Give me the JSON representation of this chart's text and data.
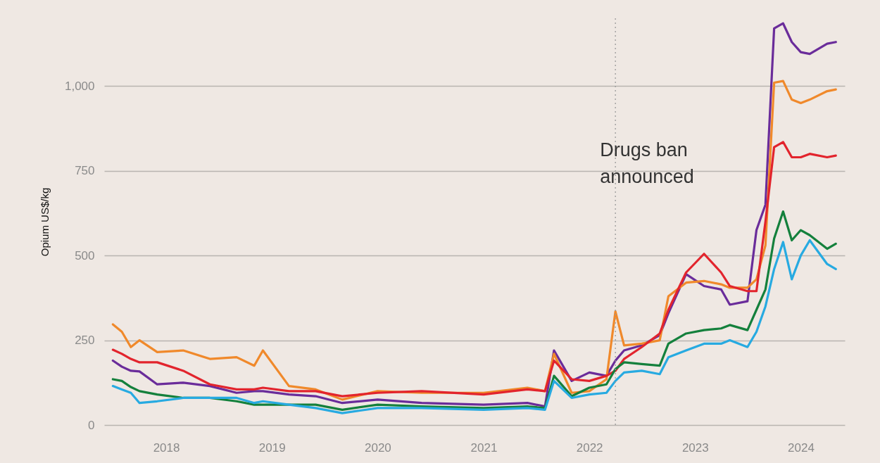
{
  "chart_data": {
    "type": "line",
    "ylabel": "Opium US$/kg",
    "x": [
      "2017-07",
      "2017-08",
      "2017-09",
      "2017-10",
      "2017-12",
      "2018-03",
      "2018-06",
      "2018-09",
      "2018-11",
      "2018-12",
      "2019-03",
      "2019-06",
      "2019-09",
      "2020-01",
      "2020-06",
      "2021-01",
      "2021-06",
      "2021-08",
      "2021-09",
      "2021-11",
      "2022-01",
      "2022-03",
      "2022-04",
      "2022-05",
      "2022-07",
      "2022-09",
      "2022-10",
      "2022-12",
      "2023-02",
      "2023-04",
      "2023-05",
      "2023-07",
      "2023-08",
      "2023-09",
      "2023-10",
      "2023-11",
      "2023-12",
      "2024-01",
      "2024-02",
      "2024-04",
      "2024-05"
    ],
    "series": [
      {
        "color": "#6a2c9a",
        "values": [
          190,
          172,
          160,
          158,
          120,
          125,
          115,
          95,
          100,
          100,
          90,
          85,
          65,
          75,
          65,
          60,
          65,
          55,
          220,
          130,
          155,
          145,
          190,
          220,
          235,
          265,
          330,
          445,
          410,
          400,
          355,
          365,
          575,
          650,
          1170,
          1185,
          1130,
          1100,
          1095,
          1125,
          1130
        ]
      },
      {
        "color": "#f0892b",
        "values": [
          297,
          275,
          230,
          250,
          215,
          220,
          195,
          200,
          175,
          220,
          115,
          105,
          75,
          100,
          95,
          95,
          110,
          100,
          210,
          95,
          100,
          135,
          335,
          235,
          240,
          250,
          380,
          420,
          425,
          415,
          405,
          405,
          430,
          530,
          1010,
          1015,
          960,
          950,
          960,
          985,
          990
        ]
      },
      {
        "color": "#e2242d",
        "values": [
          222,
          210,
          195,
          185,
          185,
          160,
          120,
          105,
          105,
          110,
          100,
          100,
          85,
          95,
          100,
          90,
          105,
          100,
          190,
          135,
          130,
          145,
          160,
          195,
          230,
          270,
          340,
          450,
          505,
          450,
          410,
          395,
          395,
          600,
          820,
          835,
          790,
          790,
          800,
          790,
          795
        ]
      },
      {
        "color": "#14803c",
        "values": [
          135,
          130,
          112,
          100,
          90,
          80,
          80,
          70,
          60,
          60,
          60,
          60,
          45,
          60,
          55,
          50,
          55,
          50,
          145,
          85,
          110,
          120,
          165,
          185,
          180,
          175,
          240,
          270,
          280,
          285,
          295,
          280,
          340,
          400,
          550,
          630,
          545,
          575,
          560,
          520,
          535
        ]
      },
      {
        "color": "#27aae1",
        "values": [
          115,
          105,
          95,
          65,
          70,
          80,
          80,
          80,
          65,
          70,
          60,
          50,
          35,
          50,
          50,
          45,
          50,
          45,
          130,
          80,
          90,
          95,
          130,
          155,
          160,
          150,
          200,
          220,
          240,
          240,
          250,
          230,
          275,
          350,
          460,
          540,
          430,
          500,
          545,
          475,
          460
        ]
      }
    ],
    "xlim": [
      "2017-06",
      "2024-06"
    ],
    "xticks": [
      {
        "value": "2018",
        "label": "2018"
      },
      {
        "value": "2019",
        "label": "2019"
      },
      {
        "value": "2020",
        "label": "2020"
      },
      {
        "value": "2021",
        "label": "2021"
      },
      {
        "value": "2022",
        "label": "2022"
      },
      {
        "value": "2023",
        "label": "2023"
      },
      {
        "value": "2024",
        "label": "2024"
      }
    ],
    "ylim": [
      0,
      1200
    ],
    "yticks": [
      0,
      250,
      500,
      750,
      {
        "value": 1000,
        "label": "1,000"
      }
    ],
    "grid": "y",
    "ref_lines": [
      {
        "axis": "x",
        "value": "2022-04",
        "label": "Drugs ban announced",
        "line_style": "dotted",
        "color": "#999999"
      }
    ]
  }
}
